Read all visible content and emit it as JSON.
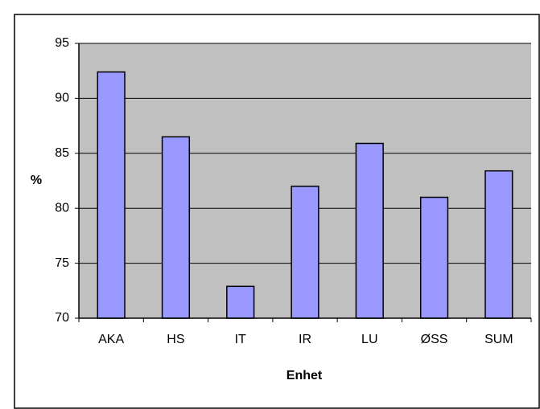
{
  "chart_data": {
    "type": "bar",
    "x_label": "Enhet",
    "y_label": "%",
    "categories": [
      "AKA",
      "HS",
      "IT",
      "IR",
      "LU",
      "ØSS",
      "SUM"
    ],
    "values": [
      92.4,
      86.5,
      72.9,
      82.0,
      85.9,
      81.0,
      83.4
    ],
    "color": "#9999ff",
    "plot_background": "#c0c0c0",
    "ylim": [
      70,
      95
    ],
    "yticks": [
      70,
      75,
      80,
      85,
      90,
      95
    ],
    "grid": true
  }
}
